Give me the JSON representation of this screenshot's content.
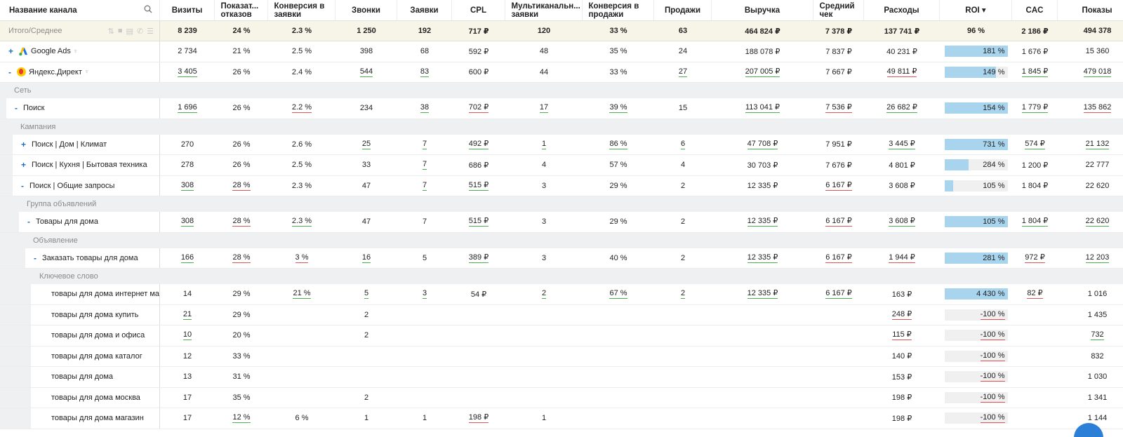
{
  "header": {
    "name": "Название канала",
    "columns": [
      "Визиты",
      "Показат... отказов",
      "Конверсия в заявки",
      "Звонки",
      "Заявки",
      "CPL",
      "Мультиканальн... заявки",
      "Конверсия в продажи",
      "Продажи",
      "Выручка",
      "Средний чек",
      "Расходы",
      "ROI ▾",
      "CAC",
      "Показы"
    ]
  },
  "total": {
    "label": "Итого/Среднее",
    "values": [
      "8 239",
      "24 %",
      "2.3 %",
      "1 250",
      "192",
      "717 ₽",
      "120",
      "33 %",
      "63",
      "464 824 ₽",
      "7 378 ₽",
      "137 741 ₽",
      "96 %",
      "2 186 ₽",
      "494 378"
    ]
  },
  "rows": [
    {
      "type": "data",
      "name": "Google Ads",
      "toggle": "+",
      "logo": "google",
      "values": [
        "2 734",
        "21 %",
        "2.5 %",
        "398",
        "68",
        "592 ₽",
        "48",
        "35 %",
        "24",
        "188 078 ₽",
        "7 837 ₽",
        "40 231 ₽",
        "181 %",
        "1 676 ₽",
        "15 360"
      ],
      "roi_fill": 1.0,
      "u": {}
    },
    {
      "type": "data",
      "name": "Яндекс.Директ",
      "toggle": "-",
      "logo": "yandex",
      "values": [
        "3 405",
        "26 %",
        "2.4 %",
        "544",
        "83",
        "600 ₽",
        "44",
        "33 %",
        "27",
        "207 005 ₽",
        "7 667 ₽",
        "49 811 ₽",
        "149 %",
        "1 845 ₽",
        "479 018"
      ],
      "roi_fill": 0.82,
      "u": {
        "0": "g",
        "3": "g",
        "4": "g",
        "8": "g",
        "9": "g",
        "11": "r",
        "13": "g",
        "14": "g"
      }
    },
    {
      "type": "group",
      "label": "Сеть",
      "level": 0
    },
    {
      "type": "data",
      "name": "Поиск",
      "toggle": "-",
      "level": 1,
      "values": [
        "1 696",
        "26 %",
        "2.2 %",
        "234",
        "38",
        "702 ₽",
        "17",
        "39 %",
        "15",
        "113 041 ₽",
        "7 536 ₽",
        "26 682 ₽",
        "154 %",
        "1 779 ₽",
        "135 862"
      ],
      "roi_fill": 1.0,
      "u": {
        "0": "g",
        "2": "r",
        "4": "g",
        "5": "r",
        "6": "g",
        "7": "g",
        "9": "g",
        "10": "r",
        "11": "g",
        "13": "g",
        "14": "r"
      }
    },
    {
      "type": "group",
      "label": "Кампания",
      "level": 1
    },
    {
      "type": "data",
      "name": "Поиск | Дом | Климат",
      "toggle": "+",
      "level": 2,
      "values": [
        "270",
        "26 %",
        "2.6 %",
        "25",
        "7",
        "492 ₽",
        "1",
        "86 %",
        "6",
        "47 708 ₽",
        "7 951 ₽",
        "3 445 ₽",
        "731 %",
        "574 ₽",
        "21 132"
      ],
      "roi_fill": 1.0,
      "u": {
        "3": "g",
        "4": "g",
        "5": "g",
        "6": "g",
        "7": "g",
        "8": "g",
        "9": "g",
        "11": "g",
        "13": "g",
        "14": "g"
      }
    },
    {
      "type": "data",
      "name": "Поиск | Кухня | Бытовая техника",
      "toggle": "+",
      "level": 2,
      "values": [
        "278",
        "26 %",
        "2.5 %",
        "33",
        "7",
        "686 ₽",
        "4",
        "57 %",
        "4",
        "30 703 ₽",
        "7 676 ₽",
        "4 801 ₽",
        "284 %",
        "1 200 ₽",
        "22 777"
      ],
      "roi_fill": 0.38,
      "u": {
        "4": "g"
      }
    },
    {
      "type": "data",
      "name": "Поиск | Общие запросы",
      "toggle": "-",
      "level": 2,
      "values": [
        "308",
        "28 %",
        "2.3 %",
        "47",
        "7",
        "515 ₽",
        "3",
        "29 %",
        "2",
        "12 335 ₽",
        "6 167 ₽",
        "3 608 ₽",
        "105 %",
        "1 804 ₽",
        "22 620"
      ],
      "roi_fill": 0.14,
      "u": {
        "0": "g",
        "1": "r",
        "4": "g",
        "5": "g",
        "10": "r"
      }
    },
    {
      "type": "group",
      "label": "Группа объявлений",
      "level": 2
    },
    {
      "type": "data",
      "name": "Товары для дома",
      "toggle": "-",
      "level": 3,
      "values": [
        "308",
        "28 %",
        "2.3 %",
        "47",
        "7",
        "515 ₽",
        "3",
        "29 %",
        "2",
        "12 335 ₽",
        "6 167 ₽",
        "3 608 ₽",
        "105 %",
        "1 804 ₽",
        "22 620"
      ],
      "roi_fill": 1.0,
      "u": {
        "0": "g",
        "1": "r",
        "2": "g",
        "5": "g",
        "9": "g",
        "10": "r",
        "11": "g",
        "13": "g",
        "14": "g"
      }
    },
    {
      "type": "group",
      "label": "Объявление",
      "level": 3
    },
    {
      "type": "data",
      "name": "Заказать товары для дома",
      "toggle": "-",
      "level": 4,
      "values": [
        "166",
        "28 %",
        "3 %",
        "16",
        "5",
        "389 ₽",
        "3",
        "40 %",
        "2",
        "12 335 ₽",
        "6 167 ₽",
        "1 944 ₽",
        "281 %",
        "972 ₽",
        "12 203"
      ],
      "roi_fill": 1.0,
      "u": {
        "0": "g",
        "1": "r",
        "2": "r",
        "3": "g",
        "5": "g",
        "9": "g",
        "10": "r",
        "11": "r",
        "13": "r",
        "14": "g"
      }
    },
    {
      "type": "group",
      "label": "Ключевое слово",
      "level": 4
    },
    {
      "type": "data",
      "name": "товары для дома интернет маг...",
      "toggle": "",
      "level": 5,
      "values": [
        "14",
        "29 %",
        "21 %",
        "5",
        "3",
        "54 ₽",
        "2",
        "67 %",
        "2",
        "12 335 ₽",
        "6 167 ₽",
        "163 ₽",
        "4 430 %",
        "82 ₽",
        "1 016"
      ],
      "roi_fill": 1.0,
      "u": {
        "2": "g",
        "3": "g",
        "4": "g",
        "6": "g",
        "7": "g",
        "8": "g",
        "9": "g",
        "10": "g",
        "13": "r"
      }
    },
    {
      "type": "data",
      "name": "товары для дома купить",
      "toggle": "",
      "level": 5,
      "values": [
        "21",
        "29 %",
        "",
        "2",
        "",
        "",
        "",
        "",
        "",
        "",
        "",
        "248 ₽",
        "-100 %",
        "",
        "1 435"
      ],
      "roi_fill": 0.0,
      "u": {
        "0": "g",
        "11": "r",
        "12": "r"
      }
    },
    {
      "type": "data",
      "name": "товары для дома и офиса",
      "toggle": "",
      "level": 5,
      "values": [
        "10",
        "20 %",
        "",
        "2",
        "",
        "",
        "",
        "",
        "",
        "",
        "",
        "115 ₽",
        "-100 %",
        "",
        "732"
      ],
      "roi_fill": 0.0,
      "u": {
        "0": "g",
        "11": "r",
        "12": "r",
        "14": "g"
      }
    },
    {
      "type": "data",
      "name": "товары для дома каталог",
      "toggle": "",
      "level": 5,
      "values": [
        "12",
        "33 %",
        "",
        "",
        "",
        "",
        "",
        "",
        "",
        "",
        "",
        "140 ₽",
        "-100 %",
        "",
        "832"
      ],
      "roi_fill": 0.0,
      "u": {
        "12": "r"
      }
    },
    {
      "type": "data",
      "name": "товары для дома",
      "toggle": "",
      "level": 5,
      "values": [
        "13",
        "31 %",
        "",
        "",
        "",
        "",
        "",
        "",
        "",
        "",
        "",
        "153 ₽",
        "-100 %",
        "",
        "1 030"
      ],
      "roi_fill": 0.0,
      "u": {
        "12": "r"
      }
    },
    {
      "type": "data",
      "name": "товары для дома москва",
      "toggle": "",
      "level": 5,
      "values": [
        "17",
        "35 %",
        "",
        "2",
        "",
        "",
        "",
        "",
        "",
        "",
        "",
        "198 ₽",
        "-100 %",
        "",
        "1 341"
      ],
      "roi_fill": 0.0,
      "u": {
        "12": "r"
      }
    },
    {
      "type": "data",
      "name": "товары для дома магазин",
      "toggle": "",
      "level": 5,
      "values": [
        "17",
        "12 %",
        "6 %",
        "1",
        "1",
        "198 ₽",
        "1",
        "",
        "",
        "",
        "",
        "198 ₽",
        "-100 %",
        "",
        "1 144"
      ],
      "roi_fill": 0.0,
      "u": {
        "1": "g",
        "5": "r",
        "12": "r"
      }
    }
  ]
}
